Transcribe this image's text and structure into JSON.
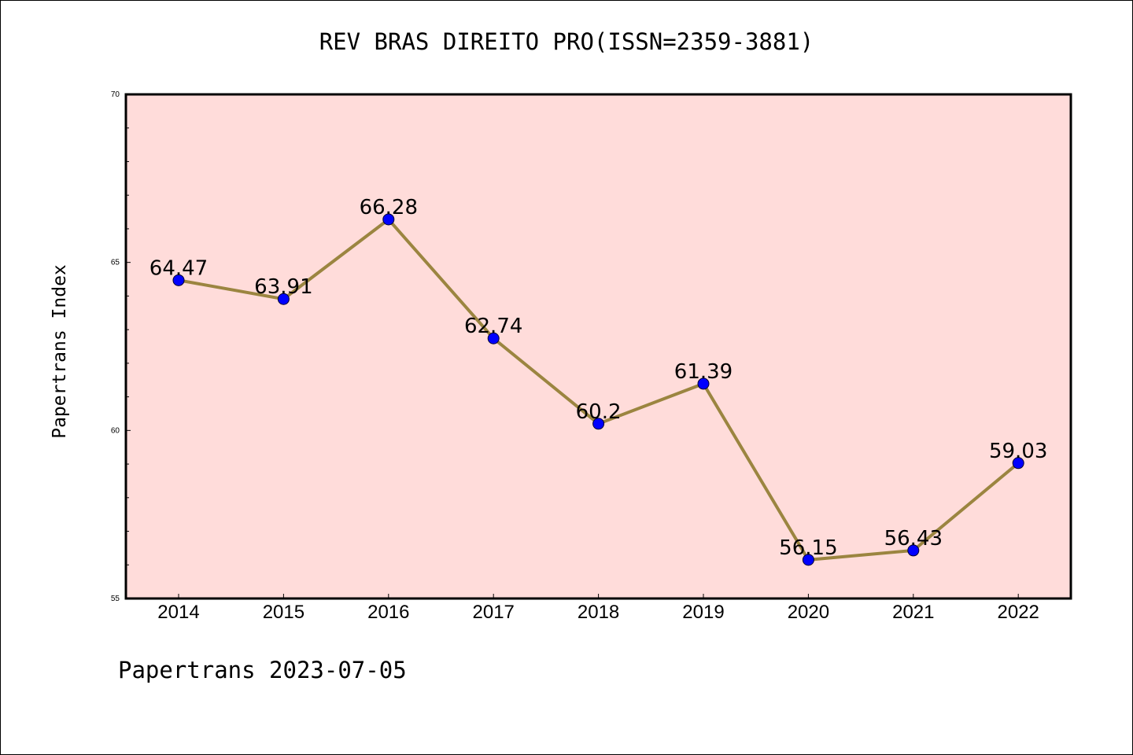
{
  "chart_data": {
    "type": "line",
    "title": "REV BRAS DIREITO PRO(ISSN=2359-3881)",
    "ylabel": "Papertrans Index",
    "xlabel": "",
    "categories": [
      "2014",
      "2015",
      "2016",
      "2017",
      "2018",
      "2019",
      "2020",
      "2021",
      "2022"
    ],
    "series": [
      {
        "values": [
          64.47,
          63.91,
          66.28,
          62.74,
          60.2,
          61.39,
          56.15,
          56.43,
          59.03
        ],
        "labels": [
          "64.47",
          "63.91",
          "66.28",
          "62.74",
          "60.2",
          "61.39",
          "56.15",
          "56.43",
          "59.03"
        ],
        "line_color": "#9b8540",
        "marker_color": "#0000ff"
      }
    ],
    "ylim": [
      55,
      70
    ],
    "yticks": [
      "55",
      "60",
      "65",
      "70"
    ],
    "plot_background": "#ffdcda",
    "grid": false
  },
  "footer": "Papertrans 2023-07-05"
}
